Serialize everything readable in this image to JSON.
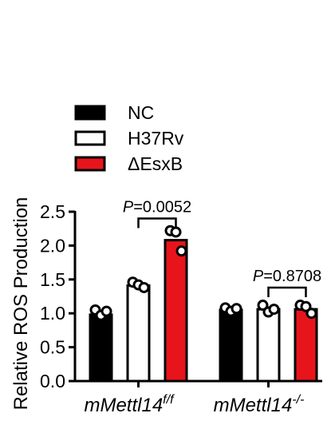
{
  "chart_data": {
    "type": "bar",
    "ylabel": "Relative ROS Production",
    "ylim": [
      0,
      2.5
    ],
    "yticks": [
      "0.0",
      "0.5",
      "1.0",
      "1.5",
      "2.0",
      "2.5"
    ],
    "groups": [
      {
        "base": "mMettl14",
        "sup": "f/f"
      },
      {
        "base": "mMettl14",
        "sup": "-/-"
      }
    ],
    "legend_position": "top-left",
    "series": [
      {
        "name": "NC",
        "color": "#000000",
        "values": [
          0.98,
          1.05
        ],
        "points": [
          [
            1.05,
            0.97,
            1.03
          ],
          [
            1.08,
            1.03,
            1.07
          ]
        ]
      },
      {
        "name": "H37Rv",
        "color": "#ffffff",
        "values": [
          1.41,
          1.06
        ],
        "points": [
          [
            1.46,
            1.42,
            1.38
          ],
          [
            1.12,
            1.02,
            1.06
          ]
        ]
      },
      {
        "name": "ΔEsxB",
        "color": "#e8141b",
        "values": [
          2.08,
          1.06
        ],
        "points": [
          [
            2.22,
            2.2,
            1.92
          ],
          [
            1.12,
            1.1,
            1.0
          ]
        ]
      }
    ],
    "annotations": [
      {
        "label": "P",
        "value": "=0.0052",
        "group": 0,
        "from_series": 1,
        "to_series": 2,
        "y": 2.4
      },
      {
        "label": "P",
        "value": "=0.8708",
        "group": 1,
        "from_series": 1,
        "to_series": 2,
        "y": 1.38
      }
    ]
  }
}
